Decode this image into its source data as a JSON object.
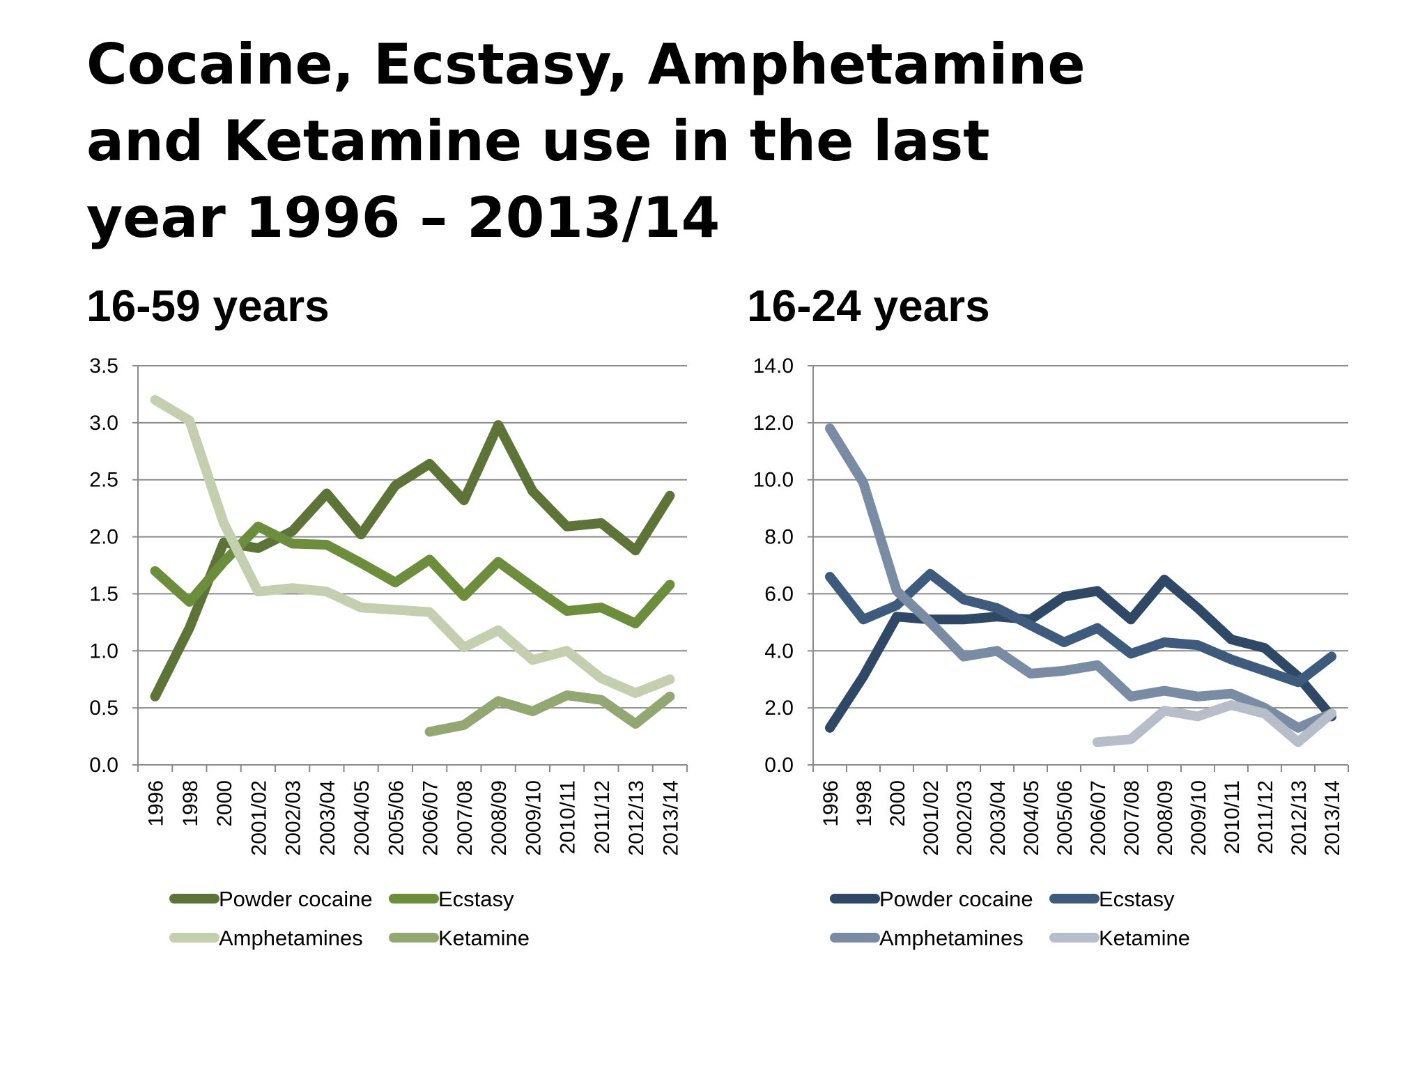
{
  "slide": {
    "title": "Cocaine, Ecstasy, Amphetamine and Ketamine use in the last year 1996 – 2013/14",
    "left_subtitle": "16-59 years",
    "right_subtitle": "16-24 years"
  },
  "chart_data": [
    {
      "type": "line",
      "categories": [
        "1996",
        "1998",
        "2000",
        "2001/02",
        "2002/03",
        "2003/04",
        "2004/05",
        "2005/06",
        "2006/07",
        "2007/08",
        "2008/09",
        "2009/10",
        "2010/11",
        "2011/12",
        "2012/13",
        "2013/14"
      ],
      "ylim": [
        0,
        3.5
      ],
      "yticks": [
        "0.0",
        "0.5",
        "1.0",
        "1.5",
        "2.0",
        "2.5",
        "3.0",
        "3.5"
      ],
      "grid": true,
      "legend_position": "bottom",
      "series": [
        {
          "name": "Powder cocaine",
          "color": "#5e7338",
          "values": [
            0.6,
            1.2,
            1.95,
            1.9,
            2.05,
            2.38,
            2.02,
            2.45,
            2.64,
            2.32,
            2.98,
            2.4,
            2.09,
            2.12,
            1.88,
            2.36
          ]
        },
        {
          "name": "Ecstasy",
          "color": "#6c8e3c",
          "values": [
            1.7,
            1.43,
            1.78,
            2.09,
            1.94,
            1.93,
            1.77,
            1.6,
            1.8,
            1.48,
            1.78,
            1.56,
            1.35,
            1.38,
            1.24,
            1.58
          ]
        },
        {
          "name": "Amphetamines",
          "color": "#c3cfae",
          "values": [
            3.2,
            3.02,
            2.12,
            1.52,
            1.55,
            1.52,
            1.38,
            1.36,
            1.34,
            1.03,
            1.18,
            0.92,
            1.0,
            0.76,
            0.63,
            0.75
          ]
        },
        {
          "name": "Ketamine",
          "color": "#93a772",
          "values": [
            null,
            null,
            null,
            null,
            null,
            null,
            null,
            null,
            0.29,
            0.35,
            0.56,
            0.47,
            0.61,
            0.57,
            0.36,
            0.6
          ]
        }
      ]
    },
    {
      "type": "line",
      "categories": [
        "1996",
        "1998",
        "2000",
        "2001/02",
        "2002/03",
        "2003/04",
        "2004/05",
        "2005/06",
        "2006/07",
        "2007/08",
        "2008/09",
        "2009/10",
        "2010/11",
        "2011/12",
        "2012/13",
        "2013/14"
      ],
      "ylim": [
        0,
        14
      ],
      "yticks": [
        "0.0",
        "2.0",
        "4.0",
        "6.0",
        "8.0",
        "10.0",
        "12.0",
        "14.0"
      ],
      "grid": true,
      "legend_position": "bottom",
      "series": [
        {
          "name": "Powder cocaine",
          "color": "#2f4866",
          "values": [
            1.3,
            3.1,
            5.2,
            5.1,
            5.1,
            5.2,
            5.1,
            5.9,
            6.1,
            5.1,
            6.5,
            5.5,
            4.4,
            4.1,
            3.1,
            1.7
          ]
        },
        {
          "name": "Ecstasy",
          "color": "#3e5a7c",
          "values": [
            6.6,
            5.1,
            5.6,
            6.7,
            5.8,
            5.5,
            4.9,
            4.3,
            4.8,
            3.9,
            4.3,
            4.2,
            3.7,
            3.3,
            2.9,
            3.8
          ]
        },
        {
          "name": "Amphetamines",
          "color": "#7a8ba4",
          "values": [
            11.8,
            9.9,
            6.1,
            5.0,
            3.8,
            4.0,
            3.2,
            3.3,
            3.5,
            2.4,
            2.6,
            2.4,
            2.5,
            2.0,
            1.3,
            1.8
          ]
        },
        {
          "name": "Ketamine",
          "color": "#b7bec9",
          "values": [
            null,
            null,
            null,
            null,
            null,
            null,
            null,
            null,
            0.8,
            0.9,
            1.9,
            1.7,
            2.1,
            1.8,
            0.8,
            1.8
          ]
        }
      ]
    }
  ]
}
